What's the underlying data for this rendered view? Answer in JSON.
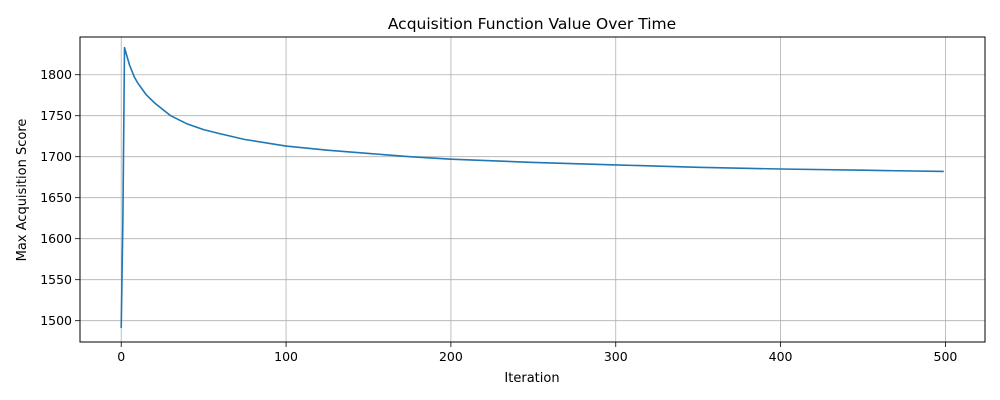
{
  "chart_data": {
    "type": "line",
    "title": "Acquisition Function Value Over Time",
    "xlabel": "Iteration",
    "ylabel": "Max Acquisition Score",
    "xlim": [
      -25,
      524
    ],
    "ylim": [
      1474,
      1846
    ],
    "xticks": [
      0,
      100,
      200,
      300,
      400,
      500
    ],
    "yticks": [
      1500,
      1550,
      1600,
      1650,
      1700,
      1750,
      1800
    ],
    "grid": true,
    "series": [
      {
        "color": "#1f77b4",
        "points": [
          [
            0,
            1491
          ],
          [
            1,
            1620
          ],
          [
            2,
            1833
          ],
          [
            3,
            1826
          ],
          [
            5,
            1812
          ],
          [
            8,
            1797
          ],
          [
            10,
            1790
          ],
          [
            15,
            1776
          ],
          [
            20,
            1766
          ],
          [
            30,
            1750
          ],
          [
            40,
            1740
          ],
          [
            50,
            1733
          ],
          [
            60,
            1728
          ],
          [
            75,
            1721
          ],
          [
            100,
            1713
          ],
          [
            125,
            1708
          ],
          [
            150,
            1704
          ],
          [
            175,
            1700
          ],
          [
            200,
            1697
          ],
          [
            250,
            1693
          ],
          [
            300,
            1690
          ],
          [
            350,
            1687
          ],
          [
            400,
            1685
          ],
          [
            450,
            1683.5
          ],
          [
            499,
            1682
          ]
        ]
      }
    ]
  }
}
